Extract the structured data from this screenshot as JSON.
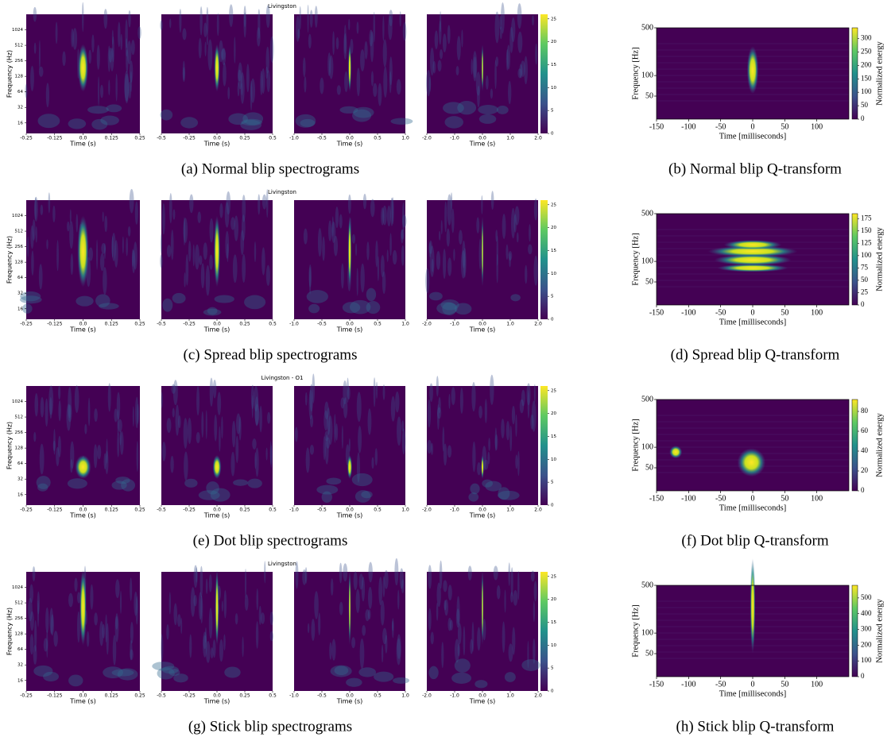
{
  "spectrogram_axes": {
    "ylabel": "Frequency (Hz)",
    "xlabel": "Time (s)",
    "ylim": [
      10,
      2048
    ],
    "yticks": [
      16,
      32,
      64,
      128,
      256,
      512,
      1024
    ],
    "colorbar_lim": [
      0,
      26
    ],
    "panels": [
      {
        "xlim": [
          -0.25,
          0.25
        ],
        "xticks": [
          -0.25,
          -0.125,
          {
            "value": 0,
            "label": "0.0"
          },
          0.125,
          0.25
        ]
      },
      {
        "xlim": [
          -0.5,
          0.5
        ],
        "xticks": [
          -0.5,
          -0.25,
          {
            "value": 0,
            "label": "0.0"
          },
          0.25,
          0.5
        ]
      },
      {
        "xlim": [
          -1,
          1
        ],
        "xticks": [
          {
            "value": -1,
            "label": "-1.0"
          },
          -0.5,
          {
            "value": 0,
            "label": "0.0"
          },
          0.5,
          {
            "value": 1,
            "label": "1.0"
          }
        ]
      },
      {
        "xlim": [
          -2,
          2
        ],
        "xticks": [
          {
            "value": -2,
            "label": "-2.0"
          },
          {
            "value": -1,
            "label": "-1.0"
          },
          {
            "value": 0,
            "label": "0.0"
          },
          {
            "value": 1,
            "label": "1.0"
          },
          {
            "value": 2,
            "label": "2.0"
          }
        ]
      }
    ]
  },
  "qtransform_axes": {
    "ylabel": "Frequency [Hz]",
    "xlabel": "Time [milliseconds]",
    "xlim": [
      -150,
      150
    ],
    "xticks": [
      -150,
      -100,
      -50,
      0,
      50,
      100
    ],
    "ylim": [
      23,
      500
    ],
    "yticks": [
      50,
      100,
      500
    ],
    "colorbar_label": "Normalized energy"
  },
  "rows": [
    {
      "spectrogram": {
        "title": "Livingston",
        "colorbar_ticks": [
          0,
          5,
          10,
          15,
          20,
          25
        ]
      },
      "qtransform": {
        "colorbar_lim": [
          0,
          340
        ],
        "colorbar_ticks": [
          0,
          50,
          100,
          150,
          200,
          250,
          300
        ]
      },
      "captions": {
        "spectrogram": "(a) Normal blip spectrograms",
        "qtransform": "(b) Normal blip Q-transform"
      }
    },
    {
      "spectrogram": {
        "title": "Livingston",
        "colorbar_ticks": [
          0,
          5,
          10,
          15,
          20,
          25
        ]
      },
      "qtransform": {
        "colorbar_lim": [
          0,
          185
        ],
        "colorbar_ticks": [
          0,
          25,
          50,
          75,
          100,
          125,
          150,
          175
        ]
      },
      "captions": {
        "spectrogram": "(c) Spread blip spectrograms",
        "qtransform": "(d) Spread blip Q-transform"
      }
    },
    {
      "spectrogram": {
        "title": "Livingston - O1",
        "colorbar_ticks": [
          0,
          5,
          10,
          15,
          20,
          25
        ]
      },
      "qtransform": {
        "colorbar_lim": [
          0,
          92
        ],
        "colorbar_ticks": [
          0,
          20,
          40,
          60,
          80
        ]
      },
      "captions": {
        "spectrogram": "(e) Dot blip spectrograms",
        "qtransform": "(f) Dot blip Q-transform"
      }
    },
    {
      "spectrogram": {
        "title": "Livingston",
        "colorbar_ticks": [
          0,
          5,
          10,
          15,
          20,
          25
        ]
      },
      "qtransform": {
        "colorbar_lim": [
          0,
          580
        ],
        "colorbar_ticks": [
          0,
          100,
          200,
          300,
          400,
          500
        ]
      },
      "captions": {
        "spectrogram": "(g) Stick blip spectrograms",
        "qtransform": "(h) Stick blip Q-transform"
      }
    }
  ]
}
